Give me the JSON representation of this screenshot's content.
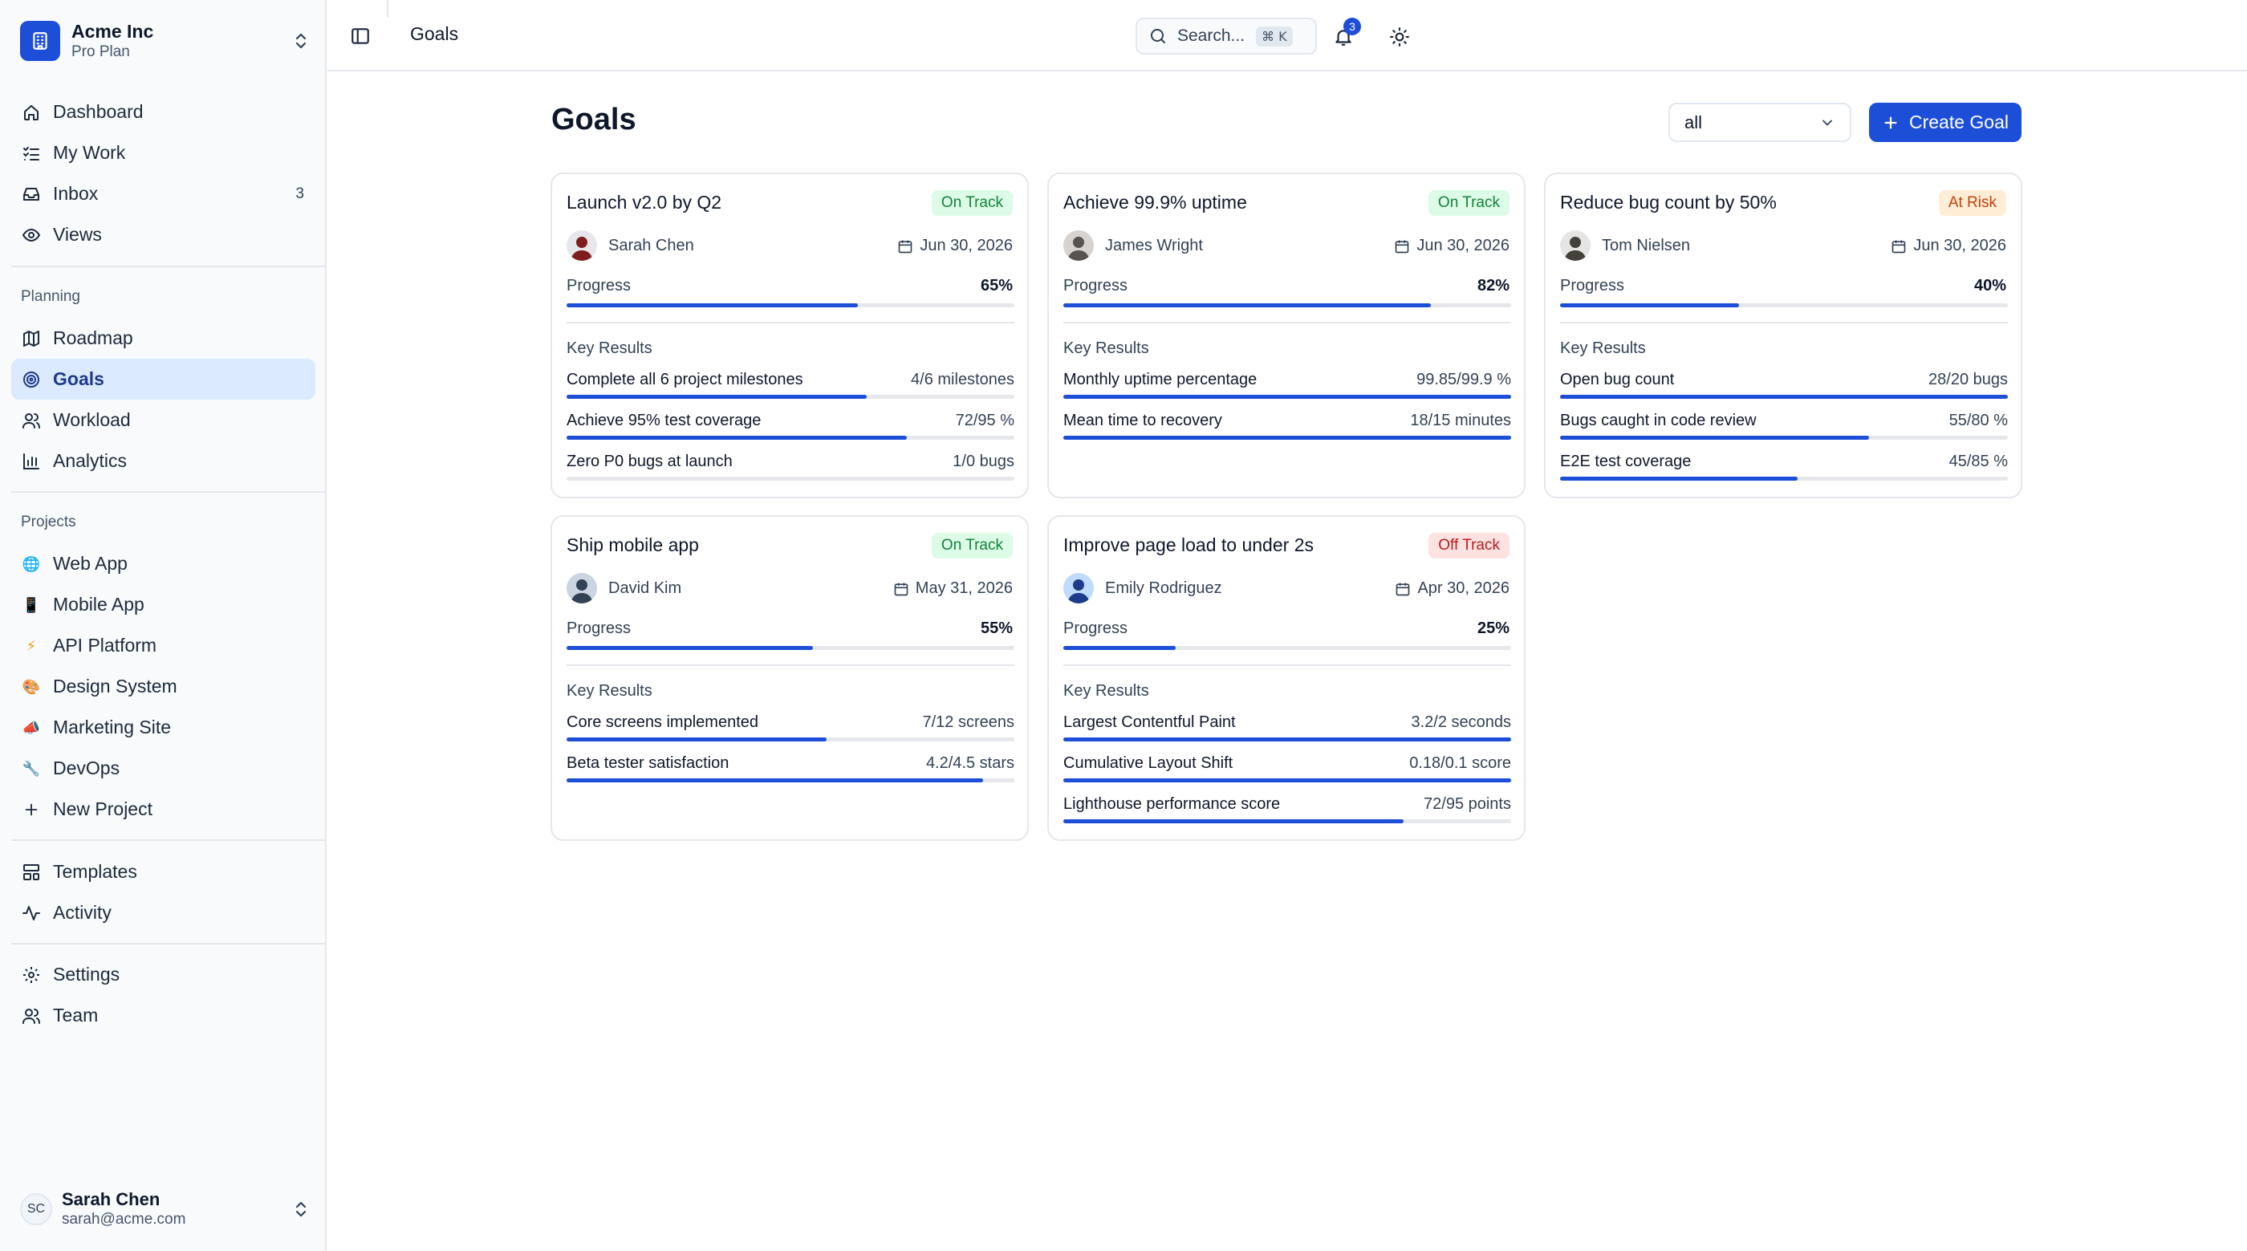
{
  "org": {
    "name": "Acme Inc",
    "plan": "Pro Plan"
  },
  "nav": {
    "main": [
      {
        "label": "Dashboard",
        "icon": "home-icon"
      },
      {
        "label": "My Work",
        "icon": "list-check-icon"
      },
      {
        "label": "Inbox",
        "icon": "inbox-icon",
        "badge": "3"
      },
      {
        "label": "Views",
        "icon": "eye-icon"
      }
    ],
    "planning_label": "Planning",
    "planning": [
      {
        "label": "Roadmap",
        "icon": "map-icon"
      },
      {
        "label": "Goals",
        "icon": "target-icon",
        "active": true
      },
      {
        "label": "Workload",
        "icon": "users-icon"
      },
      {
        "label": "Analytics",
        "icon": "bar-chart-icon"
      }
    ],
    "projects_label": "Projects",
    "projects": [
      {
        "label": "Web App",
        "icon": "globe-emoji",
        "glyph": "🌐"
      },
      {
        "label": "Mobile App",
        "icon": "phone-emoji",
        "glyph": "📱"
      },
      {
        "label": "API Platform",
        "icon": "lightning-emoji",
        "glyph": "⚡"
      },
      {
        "label": "Design System",
        "icon": "palette-emoji",
        "glyph": "🎨"
      },
      {
        "label": "Marketing Site",
        "icon": "megaphone-emoji",
        "glyph": "📣"
      },
      {
        "label": "DevOps",
        "icon": "wrench-emoji",
        "glyph": "🔧"
      },
      {
        "label": "New Project",
        "icon": "plus-icon"
      }
    ],
    "misc": [
      {
        "label": "Templates",
        "icon": "template-icon"
      },
      {
        "label": "Activity",
        "icon": "activity-icon"
      }
    ],
    "settings": [
      {
        "label": "Settings",
        "icon": "gear-icon"
      },
      {
        "label": "Team",
        "icon": "team-icon"
      }
    ]
  },
  "user": {
    "initials": "SC",
    "name": "Sarah Chen",
    "email": "sarah@acme.com"
  },
  "topbar": {
    "title": "Goals",
    "search_placeholder": "Search...",
    "shortcut": "⌘ K",
    "notification_count": "3"
  },
  "main": {
    "title": "Goals",
    "filter_value": "all",
    "create_label": "Create Goal"
  },
  "labels": {
    "progress": "Progress",
    "key_results": "Key Results"
  },
  "colors": {
    "accent": "#1d4ed8",
    "on_track": "#15803d",
    "at_risk": "#c2410c",
    "off_track": "#b91c1c"
  },
  "goals": [
    {
      "title": "Launch v2.0 by Q2",
      "status": "On Track",
      "status_kind": "on",
      "owner": "Sarah Chen",
      "due": "Jun 30, 2026",
      "progress": "65%",
      "progress_value": 0.65,
      "key_results": [
        {
          "name": "Complete all 6 project milestones",
          "value": "4/6 milestones",
          "fraction": 0.67
        },
        {
          "name": "Achieve 95% test coverage",
          "value": "72/95 %",
          "fraction": 0.76
        },
        {
          "name": "Zero P0 bugs at launch",
          "value": "1/0 bugs",
          "fraction": 0
        }
      ]
    },
    {
      "title": "Achieve 99.9% uptime",
      "status": "On Track",
      "status_kind": "on",
      "owner": "James Wright",
      "due": "Jun 30, 2026",
      "progress": "82%",
      "progress_value": 0.82,
      "key_results": [
        {
          "name": "Monthly uptime percentage",
          "value": "99.85/99.9 %",
          "fraction": 1.0
        },
        {
          "name": "Mean time to recovery",
          "value": "18/15 minutes",
          "fraction": 1.0
        }
      ]
    },
    {
      "title": "Reduce bug count by 50%",
      "status": "At Risk",
      "status_kind": "risk",
      "owner": "Tom Nielsen",
      "due": "Jun 30, 2026",
      "progress": "40%",
      "progress_value": 0.4,
      "key_results": [
        {
          "name": "Open bug count",
          "value": "28/20 bugs",
          "fraction": 1.0
        },
        {
          "name": "Bugs caught in code review",
          "value": "55/80 %",
          "fraction": 0.69
        },
        {
          "name": "E2E test coverage",
          "value": "45/85 %",
          "fraction": 0.53
        }
      ]
    },
    {
      "title": "Ship mobile app",
      "status": "On Track",
      "status_kind": "on",
      "owner": "David Kim",
      "due": "May 31, 2026",
      "progress": "55%",
      "progress_value": 0.55,
      "key_results": [
        {
          "name": "Core screens implemented",
          "value": "7/12 screens",
          "fraction": 0.58
        },
        {
          "name": "Beta tester satisfaction",
          "value": "4.2/4.5 stars",
          "fraction": 0.93
        }
      ]
    },
    {
      "title": "Improve page load to under 2s",
      "status": "Off Track",
      "status_kind": "off",
      "owner": "Emily Rodriguez",
      "due": "Apr 30, 2026",
      "progress": "25%",
      "progress_value": 0.25,
      "key_results": [
        {
          "name": "Largest Contentful Paint",
          "value": "3.2/2 seconds",
          "fraction": 1.0
        },
        {
          "name": "Cumulative Layout Shift",
          "value": "0.18/0.1 score",
          "fraction": 1.0
        },
        {
          "name": "Lighthouse performance score",
          "value": "72/95 points",
          "fraction": 0.76
        }
      ]
    }
  ]
}
